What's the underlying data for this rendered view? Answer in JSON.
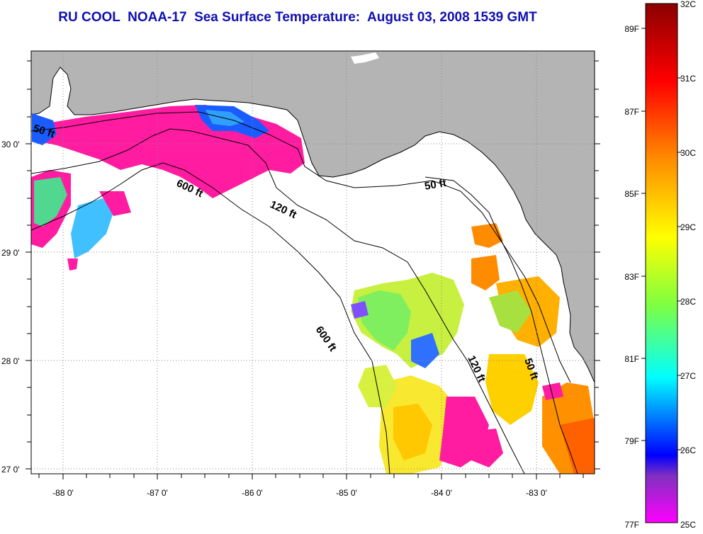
{
  "title": "RU COOL  NOAA-17  Sea Surface Temperature:  August 03, 2008 1539 GMT",
  "map": {
    "longitude_labels": [
      "-88 0'",
      "-87 0'",
      "-86 0'",
      "-85 0'",
      "-84 0'",
      "-83 0'"
    ],
    "latitude_labels": [
      "30 0'",
      "29 0'",
      "28 0'",
      "27 0'"
    ],
    "land_color": "#b4b4b4",
    "no_data_color": "#ffffff",
    "contours": [
      {
        "label": "50 ft"
      },
      {
        "label": "600 ft"
      },
      {
        "label": "120 ft"
      },
      {
        "label": "50 ft"
      },
      {
        "label": "600 ft"
      },
      {
        "label": "120 ft"
      },
      {
        "label": "50 ft"
      }
    ]
  },
  "colorbar": {
    "fahrenheit_labels": [
      "89F",
      "87F",
      "85F",
      "83F",
      "81F",
      "79F",
      "77F"
    ],
    "celsius_labels": [
      "32C",
      "31C",
      "30C",
      "29C",
      "28C",
      "27C",
      "26C",
      "25C"
    ],
    "colors": [
      "#8b0000",
      "#ff0000",
      "#ff8c00",
      "#ffff00",
      "#7fff40",
      "#00ffff",
      "#0000ff",
      "#8030c0",
      "#ff00ff"
    ]
  }
}
